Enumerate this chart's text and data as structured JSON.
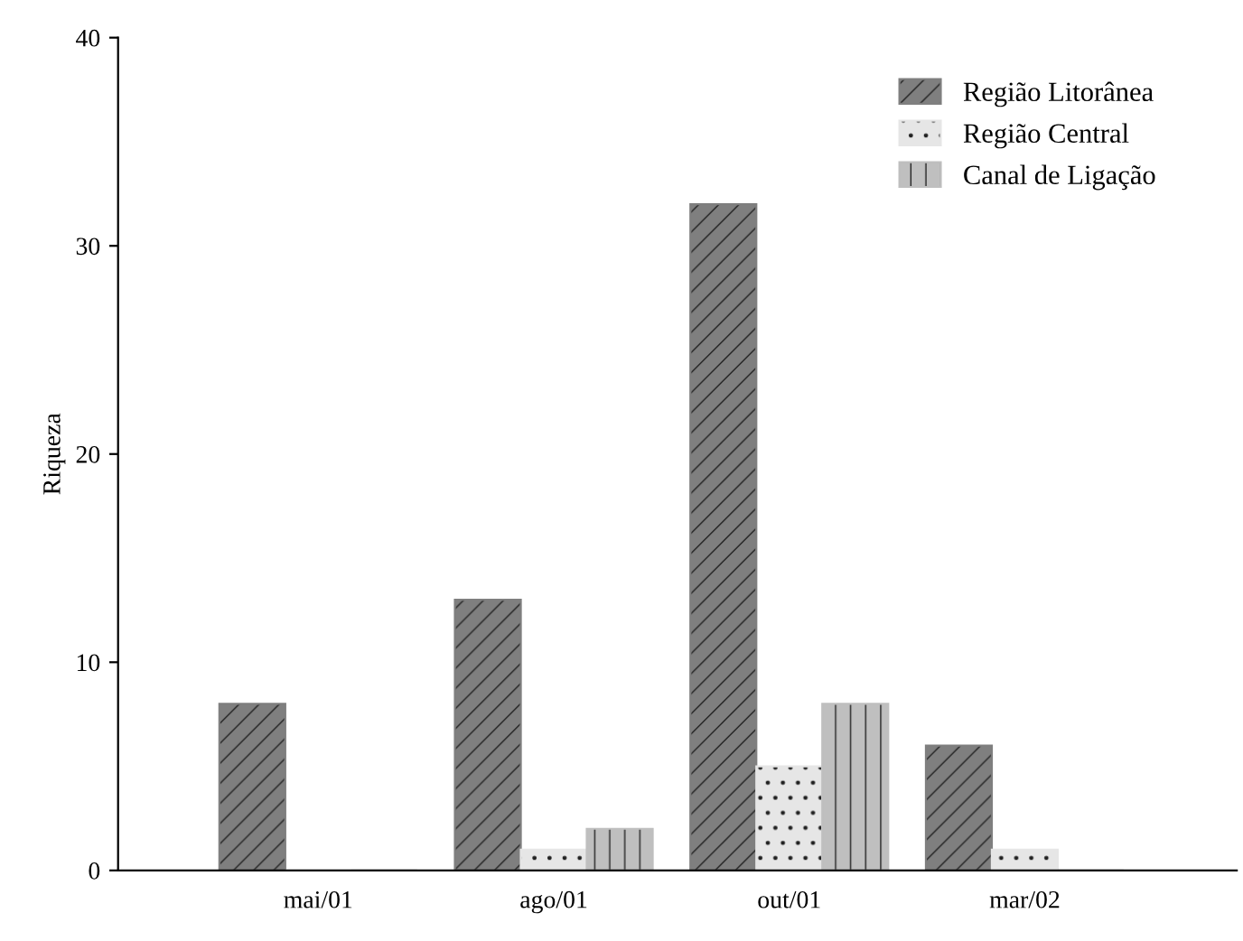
{
  "chart_data": {
    "type": "bar",
    "ylabel": "Riqueza",
    "categories": [
      "mai/01",
      "ago/01",
      "out/01",
      "mar/02"
    ],
    "series": [
      {
        "name": "Região Litorânea",
        "color": "#7f7f7f",
        "values": [
          8,
          13,
          32,
          6
        ]
      },
      {
        "name": "Região Central",
        "color": "#e6e6e6",
        "values": [
          0,
          1,
          5,
          1
        ]
      },
      {
        "name": "Canal de Ligação",
        "color": "#bfbfbf",
        "values": [
          0,
          2,
          8,
          0
        ]
      }
    ],
    "ylim": [
      0,
      40
    ],
    "yticks": [
      0,
      10,
      20,
      30,
      40
    ],
    "grid": false,
    "legend": "top right"
  }
}
